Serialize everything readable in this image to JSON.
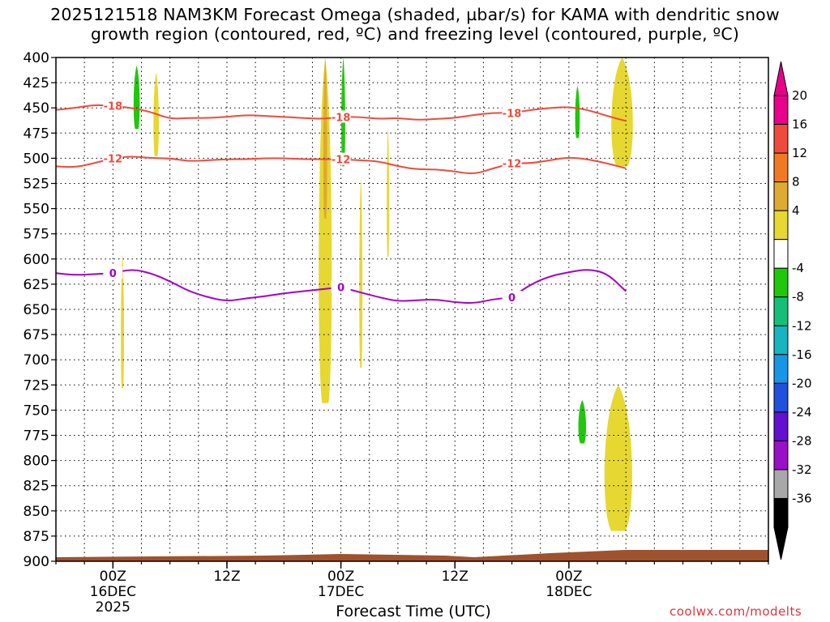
{
  "title": {
    "line1": "2025121518 NAM3KM Forecast Omega (shaded, µbar/s) for KAMA with dendritic snow",
    "line2": "growth region (contoured, red, ºC) and freezing level (contoured, purple, ºC)"
  },
  "xlabel": "Forecast Time (UTC)",
  "credit": "coolwx.com/modelts",
  "chart_data": {
    "type": "time-height cross section",
    "y_axis": {
      "label": "",
      "unit": "mb",
      "ticks": [
        400,
        425,
        450,
        475,
        500,
        525,
        550,
        575,
        600,
        625,
        650,
        675,
        700,
        725,
        750,
        775,
        800,
        825,
        850,
        875,
        900
      ],
      "range": [
        400,
        900
      ],
      "inverted": true
    },
    "x_axis": {
      "unit": "hours since 2025-12-15 18Z",
      "range": [
        0,
        75
      ],
      "ticks": [
        {
          "hour": 6,
          "label": "00Z",
          "sub": "16DEC",
          "sub2": "2025"
        },
        {
          "hour": 18,
          "label": "12Z",
          "sub": "",
          "sub2": ""
        },
        {
          "hour": 30,
          "label": "00Z",
          "sub": "17DEC",
          "sub2": ""
        },
        {
          "hour": 42,
          "label": "12Z",
          "sub": "",
          "sub2": ""
        },
        {
          "hour": 54,
          "label": "00Z",
          "sub": "18DEC",
          "sub2": ""
        }
      ]
    },
    "grid": true,
    "colorbar": {
      "labels": [
        "20",
        "16",
        "12",
        "8",
        "4",
        "-4",
        "-8",
        "-12",
        "-16",
        "-20",
        "-24",
        "-28",
        "-32",
        "-36"
      ],
      "colors": [
        "#e8008a",
        "#f04a3c",
        "#f07a22",
        "#e0a930",
        "#e6d830",
        "#ffffff",
        "#1fc80a",
        "#14c078",
        "#18b4c0",
        "#1896e6",
        "#2050dc",
        "#6410d0",
        "#9a10c8",
        "#a8a8a8",
        "#000000"
      ],
      "top_arrow_color": "#e8008a",
      "bottom_arrow_color": "#000000"
    },
    "series": [
      {
        "name": "-18",
        "color": "#f04a3c",
        "x": [
          0,
          2,
          4,
          6,
          8,
          10,
          12,
          14,
          16,
          18,
          20,
          22,
          24,
          26,
          28,
          30,
          32,
          34,
          36,
          38,
          40,
          42,
          44,
          46,
          48,
          50,
          52,
          54,
          56,
          58,
          60
        ],
        "y": [
          452,
          450,
          447,
          448,
          450,
          454,
          461,
          460,
          460,
          459,
          457,
          458,
          459,
          460,
          461,
          459,
          459,
          461,
          460,
          462,
          461,
          460,
          457,
          455,
          455,
          452,
          450,
          449,
          452,
          458,
          463
        ]
      },
      {
        "name": "-12",
        "color": "#f04a3c",
        "x": [
          0,
          2,
          4,
          6,
          8,
          10,
          12,
          14,
          16,
          18,
          20,
          22,
          24,
          26,
          28,
          30,
          32,
          34,
          36,
          38,
          40,
          42,
          44,
          46,
          48,
          50,
          52,
          54,
          56,
          58,
          60
        ],
        "y": [
          508,
          509,
          505,
          500,
          498,
          500,
          500,
          503,
          502,
          501,
          501,
          500,
          500,
          501,
          501,
          501,
          502,
          503,
          508,
          511,
          511,
          513,
          516,
          510,
          505,
          505,
          502,
          499,
          501,
          505,
          510
        ]
      },
      {
        "name": "0",
        "color": "#a400c8",
        "x": [
          0,
          2,
          4,
          6,
          8,
          10,
          12,
          14,
          16,
          18,
          20,
          22,
          24,
          26,
          28,
          30,
          32,
          34,
          36,
          38,
          40,
          42,
          44,
          46,
          48,
          50,
          52,
          54,
          56,
          58,
          60
        ],
        "y": [
          614,
          616,
          615,
          614,
          610,
          614,
          622,
          632,
          638,
          642,
          639,
          637,
          634,
          632,
          630,
          628,
          633,
          638,
          642,
          641,
          640,
          643,
          644,
          640,
          638,
          625,
          617,
          613,
          610,
          614,
          632
        ]
      }
    ],
    "omega_regions": [
      {
        "value": 4,
        "color": "#e6d830",
        "x": [
          6.8,
          7.2
        ],
        "p": [
          595,
          728
        ]
      },
      {
        "value": 4,
        "color": "#e6d830",
        "x": [
          10.2,
          10.9
        ],
        "p": [
          415,
          498
        ]
      },
      {
        "value": 4,
        "color": "#e6d830",
        "x": [
          27.5,
          29.2
        ],
        "p": [
          400,
          743
        ]
      },
      {
        "value": 8,
        "color": "#e0a930",
        "x": [
          28.1,
          28.6
        ],
        "p": [
          400,
          560
        ]
      },
      {
        "value": 4,
        "color": "#e6d830",
        "x": [
          31.9,
          32.3
        ],
        "p": [
          518,
          708
        ]
      },
      {
        "value": 4,
        "color": "#e6d830",
        "x": [
          34.8,
          35.1
        ],
        "p": [
          468,
          598
        ]
      },
      {
        "value": 4,
        "color": "#e6d830",
        "x": [
          58.2,
          61.0
        ],
        "p": [
          400,
          508
        ]
      },
      {
        "value": 4,
        "color": "#e6d830",
        "x": [
          57.4,
          61.0
        ],
        "p": [
          725,
          870
        ]
      },
      {
        "value": -4,
        "color": "#1fc80a",
        "x": [
          8.1,
          8.9
        ],
        "p": [
          408,
          471
        ]
      },
      {
        "value": -4,
        "color": "#1fc80a",
        "x": [
          30.0,
          30.5
        ],
        "p": [
          400,
          508
        ]
      },
      {
        "value": -4,
        "color": "#1fc80a",
        "x": [
          54.6,
          55.2
        ],
        "p": [
          428,
          480
        ]
      },
      {
        "value": -4,
        "color": "#1fc80a",
        "x": [
          54.9,
          55.9
        ],
        "p": [
          740,
          783
        ]
      }
    ],
    "terrain_color": "#a0522d",
    "contour_color_red": "#f04a3c",
    "contour_color_purple": "#a400c8",
    "title": "2025121518 NAM3KM Forecast Omega (shaded, µbar/s) for KAMA with dendritic snow growth region (contoured, red, ºC) and freezing level (contoured, purple, ºC)",
    "xlabel": "Forecast Time (UTC)",
    "ylabel": ""
  }
}
